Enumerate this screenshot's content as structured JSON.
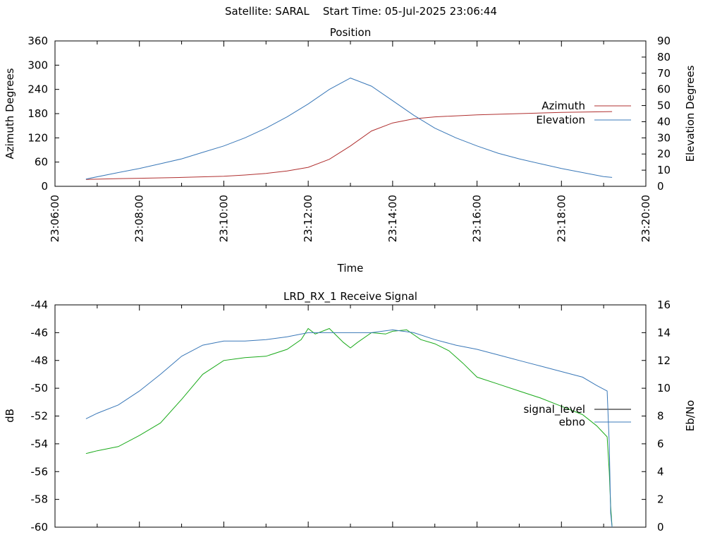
{
  "header": {
    "satellite": "Satellite: SARAL",
    "start_time": "Start Time: 05-Jul-2025 23:06:44"
  },
  "chart_data": [
    {
      "type": "line",
      "title": "Position",
      "xlabel": "Time",
      "ylabel": "Azimuth Degrees",
      "y2label": "Elevation Degrees",
      "xlim": [
        "23:06:00",
        "23:20:00"
      ],
      "xticks": [
        "23:06:00",
        "23:08:00",
        "23:10:00",
        "23:12:00",
        "23:14:00",
        "23:16:00",
        "23:18:00",
        "23:20:00"
      ],
      "ylim": [
        0,
        360
      ],
      "yticks": [
        0,
        60,
        120,
        180,
        240,
        300,
        360
      ],
      "y2lim": [
        0,
        90
      ],
      "y2ticks": [
        0,
        10,
        20,
        30,
        40,
        50,
        60,
        70,
        80,
        90
      ],
      "grid": false,
      "legend_position": "right",
      "series": [
        {
          "name": "Azimuth",
          "axis": "y",
          "color": "#b03030",
          "x": [
            "23:06:44",
            "23:07:30",
            "23:08:00",
            "23:09:00",
            "23:10:00",
            "23:10:30",
            "23:11:00",
            "23:11:30",
            "23:12:00",
            "23:12:30",
            "23:13:00",
            "23:13:30",
            "23:14:00",
            "23:14:30",
            "23:15:00",
            "23:16:00",
            "23:17:00",
            "23:18:00",
            "23:19:12"
          ],
          "values": [
            17,
            19,
            20,
            22,
            25,
            28,
            32,
            38,
            47,
            67,
            100,
            137,
            157,
            167,
            172,
            177,
            180,
            183,
            185
          ]
        },
        {
          "name": "Elevation",
          "axis": "y2",
          "color": "#3a78b8",
          "x": [
            "23:06:44",
            "23:07:30",
            "23:08:00",
            "23:08:30",
            "23:09:00",
            "23:09:30",
            "23:10:00",
            "23:10:30",
            "23:11:00",
            "23:11:30",
            "23:12:00",
            "23:12:30",
            "23:13:00",
            "23:13:30",
            "23:14:00",
            "23:14:30",
            "23:15:00",
            "23:15:30",
            "23:16:00",
            "23:16:30",
            "23:17:00",
            "23:17:30",
            "23:18:00",
            "23:18:30",
            "23:19:00",
            "23:19:12"
          ],
          "values": [
            4.5,
            8.5,
            11,
            14,
            17,
            21,
            25,
            30,
            36,
            43,
            51,
            60,
            67,
            62,
            53,
            44,
            36,
            30,
            25,
            20.5,
            17,
            14,
            11,
            8.5,
            6,
            5.5
          ]
        }
      ]
    },
    {
      "type": "line",
      "title": "LRD_RX_1 Receive Signal",
      "ylabel": "dB",
      "y2label": "Eb/No",
      "xlim": [
        "23:06:00",
        "23:20:00"
      ],
      "ylim": [
        -60,
        -44
      ],
      "yticks": [
        -60,
        -58,
        -56,
        -54,
        -52,
        -50,
        -48,
        -46,
        -44
      ],
      "y2lim": [
        0,
        16
      ],
      "y2ticks": [
        0,
        2,
        4,
        6,
        8,
        10,
        12,
        14,
        16
      ],
      "grid": false,
      "legend_position": "right",
      "series": [
        {
          "name": "signal_level",
          "axis": "y",
          "color": "#1aaa1a",
          "x": [
            "23:06:44",
            "23:07:00",
            "23:07:30",
            "23:08:00",
            "23:08:30",
            "23:09:00",
            "23:09:30",
            "23:10:00",
            "23:10:30",
            "23:11:00",
            "23:11:30",
            "23:11:50",
            "23:12:00",
            "23:12:10",
            "23:12:30",
            "23:12:50",
            "23:13:00",
            "23:13:10",
            "23:13:30",
            "23:13:50",
            "23:14:00",
            "23:14:20",
            "23:14:40",
            "23:15:00",
            "23:15:20",
            "23:15:40",
            "23:16:00",
            "23:16:30",
            "23:17:00",
            "23:17:30",
            "23:18:00",
            "23:18:30",
            "23:18:50",
            "23:19:05",
            "23:19:08",
            "23:19:10",
            "23:19:12"
          ],
          "values": [
            -54.7,
            -54.5,
            -54.2,
            -53.4,
            -52.5,
            -50.8,
            -49.0,
            -48.0,
            -47.8,
            -47.7,
            -47.2,
            -46.5,
            -45.7,
            -46.1,
            -45.7,
            -46.7,
            -47.1,
            -46.7,
            -46.0,
            -46.1,
            -45.9,
            -45.8,
            -46.5,
            -46.8,
            -47.3,
            -48.2,
            -49.2,
            -49.7,
            -50.2,
            -50.7,
            -51.3,
            -51.9,
            -52.7,
            -53.5,
            -56.0,
            -58.5,
            -60.0
          ]
        },
        {
          "name": "ebno",
          "axis": "y2",
          "color": "#3a78b8",
          "x": [
            "23:06:44",
            "23:07:00",
            "23:07:30",
            "23:08:00",
            "23:08:30",
            "23:09:00",
            "23:09:30",
            "23:10:00",
            "23:10:30",
            "23:11:00",
            "23:11:30",
            "23:12:00",
            "23:12:30",
            "23:13:00",
            "23:13:30",
            "23:14:00",
            "23:14:30",
            "23:15:00",
            "23:15:30",
            "23:16:00",
            "23:16:30",
            "23:17:00",
            "23:17:30",
            "23:18:00",
            "23:18:30",
            "23:18:50",
            "23:19:05",
            "23:19:08",
            "23:19:10",
            "23:19:12"
          ],
          "values": [
            7.8,
            8.2,
            8.8,
            9.8,
            11.0,
            12.3,
            13.1,
            13.4,
            13.4,
            13.5,
            13.7,
            14.0,
            14.0,
            14.0,
            14.0,
            14.2,
            14.0,
            13.5,
            13.1,
            12.8,
            12.4,
            12.0,
            11.6,
            11.2,
            10.8,
            10.2,
            9.8,
            6.0,
            1.0,
            0.0
          ]
        }
      ]
    }
  ]
}
